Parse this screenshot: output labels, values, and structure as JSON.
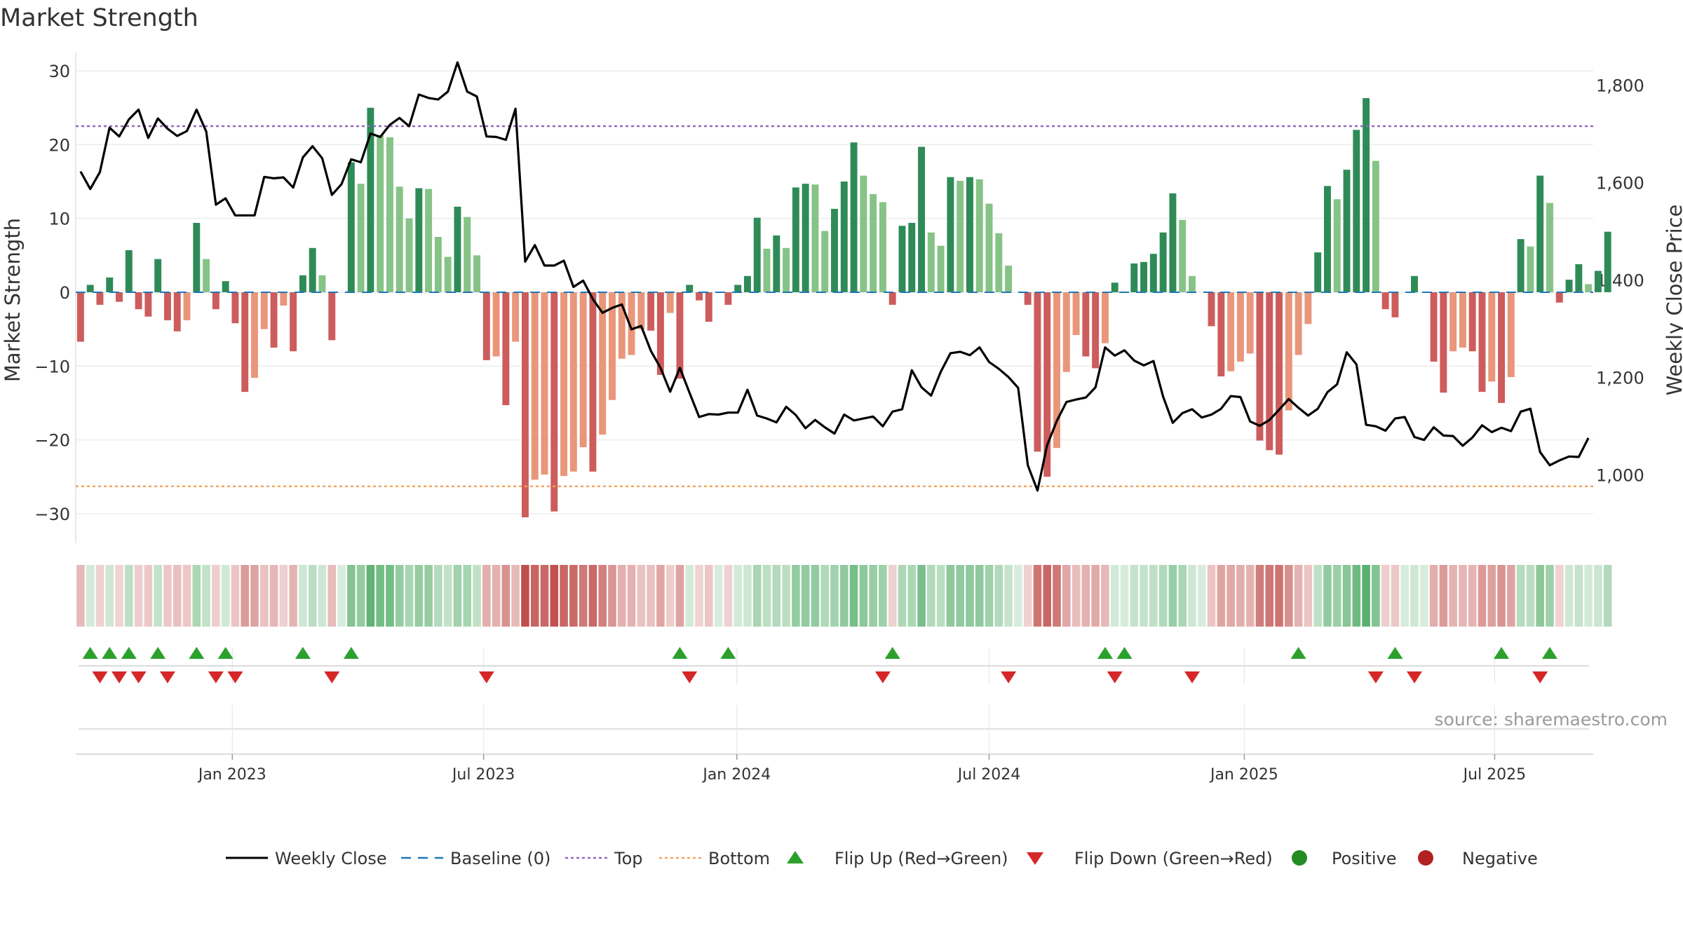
{
  "page": {
    "title": "Market Strength",
    "watermark": "source: sharemaestro.com"
  },
  "colors": {
    "bar_pos_strong": "#2e8b57",
    "bar_pos_weak": "#86c386",
    "bar_neg_strong": "#cd5c5c",
    "bar_neg_weak": "#e9967a",
    "line": "#000000",
    "baseline": "#1f77b4",
    "top": "#9467bd",
    "bottom": "#f4a460",
    "flip_up": "#2ca02c",
    "flip_down": "#d62728",
    "positive": "#228b22",
    "negative": "#b22222"
  },
  "chart_data": {
    "type": "bar",
    "title": "Market Strength",
    "ylabel_left": "Market Strength",
    "ylabel_right": "Weekly Close Price",
    "ylim_left": [
      -34,
      32
    ],
    "ylim_right": [
      860,
      1860
    ],
    "yticks_left": [
      {
        "v": 30,
        "label": "30"
      },
      {
        "v": 20,
        "label": "20"
      },
      {
        "v": 10,
        "label": "10"
      },
      {
        "v": 0,
        "label": "0"
      },
      {
        "v": -10,
        "label": "−10"
      },
      {
        "v": -20,
        "label": "−20"
      },
      {
        "v": -30,
        "label": "−30"
      }
    ],
    "yticks_right": [
      {
        "v": 1800,
        "label": "1,800"
      },
      {
        "v": 1600,
        "label": "1,600"
      },
      {
        "v": 1400,
        "label": "1,400"
      },
      {
        "v": 1200,
        "label": "1,200"
      },
      {
        "v": 1000,
        "label": "1,000"
      }
    ],
    "x_range": [
      0,
      157
    ],
    "xticks": [
      {
        "i": 16.2,
        "label": "Jan 2023"
      },
      {
        "i": 42.2,
        "label": "Jul 2023"
      },
      {
        "i": 68.4,
        "label": "Jan 2024"
      },
      {
        "i": 94.5,
        "label": "Jul 2024"
      },
      {
        "i": 120.9,
        "label": "Jan 2025"
      },
      {
        "i": 146.8,
        "label": "Jul 2025"
      }
    ],
    "top_line": 22.5,
    "bottom_line": -26.3,
    "strength": [
      -6.7,
      1,
      -1.7,
      2,
      -1.3,
      5.7,
      -2.3,
      -3.3,
      4.5,
      -3.8,
      -5.3,
      -3.8,
      9.4,
      4.5,
      -2.3,
      1.5,
      -4.2,
      -13.5,
      -11.6,
      -5,
      -7.5,
      -1.8,
      -8,
      2.3,
      6,
      2.3,
      -6.5,
      0,
      17.6,
      14.7,
      25,
      21.3,
      21,
      14.3,
      10,
      14.1,
      14,
      7.5,
      4.8,
      11.6,
      10.2,
      5,
      -9.2,
      -8.7,
      -15.3,
      -6.7,
      -30.5,
      -25.4,
      -24.7,
      -29.7,
      -24.9,
      -24.3,
      -21,
      -24.3,
      -19.3,
      -14.6,
      -9,
      -8.5,
      -5,
      -5.2,
      -11.2,
      -2.8,
      -11.7,
      1,
      -1.1,
      -4,
      0,
      -1.7,
      1,
      2.2,
      10.1,
      5.9,
      7.7,
      6,
      14.2,
      14.7,
      14.6,
      8.3,
      11.3,
      15,
      20.3,
      15.8,
      13.3,
      12.2,
      -1.7,
      9,
      9.4,
      19.7,
      8.1,
      6.3,
      15.6,
      15.1,
      15.6,
      15.3,
      12,
      8,
      3.6,
      0,
      -1.7,
      -21.6,
      -25,
      -21.1,
      -10.8,
      -5.8,
      -8.7,
      -10.3,
      -6.9,
      1.3,
      0,
      3.9,
      4.1,
      5.2,
      8.1,
      13.4,
      9.8,
      2.2,
      0,
      -4.6,
      -11.4,
      -10.7,
      -9.4,
      -8.3,
      -20.1,
      -21.4,
      -22,
      -16,
      -8.5,
      -4.3,
      5.4,
      14.4,
      12.6,
      16.6,
      22,
      26.3,
      17.8,
      -2.3,
      -3.4,
      0,
      2.2,
      0,
      -9.4,
      -13.6,
      -8,
      -7.5,
      -8,
      -13.5,
      -12.1,
      -15,
      -11.5,
      7.2,
      6.2,
      15.8,
      12.1,
      -1.4,
      1.7,
      3.8,
      1.1,
      2.9,
      8.2
    ],
    "weekly_close": [
      1623,
      1587,
      1622,
      1713,
      1695,
      1730,
      1750,
      1692,
      1732,
      1711,
      1696,
      1706,
      1750,
      1705,
      1555,
      1568,
      1533,
      1533,
      1533,
      1612,
      1609,
      1611,
      1590,
      1652,
      1675,
      1650,
      1575,
      1597,
      1648,
      1642,
      1701,
      1694,
      1719,
      1733,
      1716,
      1781,
      1774,
      1771,
      1787,
      1847,
      1787,
      1777,
      1695,
      1694,
      1688,
      1752,
      1438,
      1472,
      1430,
      1430,
      1440,
      1386,
      1399,
      1361,
      1333,
      1343,
      1350,
      1299,
      1306,
      1255,
      1220,
      1171,
      1220,
      1169,
      1119,
      1125,
      1124,
      1128,
      1128,
      1175,
      1122,
      1116,
      1108,
      1140,
      1123,
      1096,
      1113,
      1098,
      1085,
      1124,
      1112,
      1116,
      1120,
      1100,
      1130,
      1135,
      1215,
      1180,
      1163,
      1212,
      1250,
      1253,
      1246,
      1262,
      1232,
      1218,
      1201,
      1179,
      1020,
      968,
      1061,
      1111,
      1150,
      1155,
      1159,
      1180,
      1262,
      1245,
      1256,
      1235,
      1225,
      1234,
      1161,
      1107,
      1127,
      1135,
      1118,
      1124,
      1136,
      1162,
      1160,
      1110,
      1101,
      1113,
      1134,
      1156,
      1138,
      1122,
      1136,
      1170,
      1186,
      1252,
      1227,
      1103,
      1100,
      1091,
      1116,
      1119,
      1078,
      1072,
      1098,
      1081,
      1080,
      1060,
      1077,
      1102,
      1088,
      1097,
      1090,
      1130,
      1136,
      1047,
      1020,
      1030,
      1038,
      1037,
      1076
    ],
    "flip_up": [
      1,
      3,
      5,
      8,
      12,
      15,
      23,
      28,
      62,
      67,
      84,
      106,
      108,
      126,
      136,
      147,
      152
    ],
    "flip_down": [
      2,
      4,
      6,
      9,
      14,
      16,
      26,
      42,
      63,
      83,
      96,
      107,
      115,
      134,
      138,
      151
    ],
    "legend": [
      {
        "kind": "line",
        "label": "Weekly Close"
      },
      {
        "kind": "baseline",
        "label": "Baseline (0)"
      },
      {
        "kind": "top",
        "label": "Top"
      },
      {
        "kind": "bottom",
        "label": "Bottom"
      },
      {
        "kind": "flip_up",
        "label": "Flip Up (Red→Green)"
      },
      {
        "kind": "flip_down",
        "label": "Flip Down (Green→Red)"
      },
      {
        "kind": "positive",
        "label": "Positive"
      },
      {
        "kind": "negative",
        "label": "Negative"
      }
    ]
  }
}
